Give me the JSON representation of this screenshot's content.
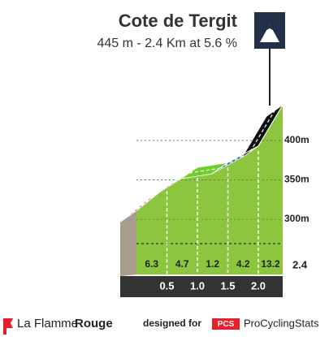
{
  "chart_data": {
    "type": "climb-profile",
    "title": "Cote de Tergit",
    "subtitle": "445 m - 2.4 Km at 5.6 %",
    "x": [
      0,
      0.5,
      1,
      1.5,
      2,
      2.4
    ],
    "elevation": [
      311,
      342,
      366,
      372,
      393,
      445
    ],
    "gradients": [
      6.3,
      4.7,
      1.2,
      4.2,
      13.2
    ],
    "gradient_colors": [
      "#e8202e",
      "#1f6aa5",
      "#6fcf2a",
      "#1f6aa5",
      "#111111"
    ],
    "xlim": [
      0,
      2.4
    ],
    "xticks": [
      0.5,
      {
        "value": 1,
        "label": "1.0"
      },
      1.5,
      {
        "value": 2,
        "label": "2.0"
      },
      2.4
    ],
    "ylim": [
      230,
      450
    ],
    "yticks": [
      {
        "value": 300,
        "label": "300m"
      },
      {
        "value": 350,
        "label": "350m"
      },
      {
        "value": 400,
        "label": "400m"
      }
    ]
  },
  "footer": {
    "brand_regular": "La Flamme",
    "brand_bold": "Rouge",
    "designed_for": "designed for",
    "pcs": "PCS",
    "site": "ProCyclingStats"
  }
}
